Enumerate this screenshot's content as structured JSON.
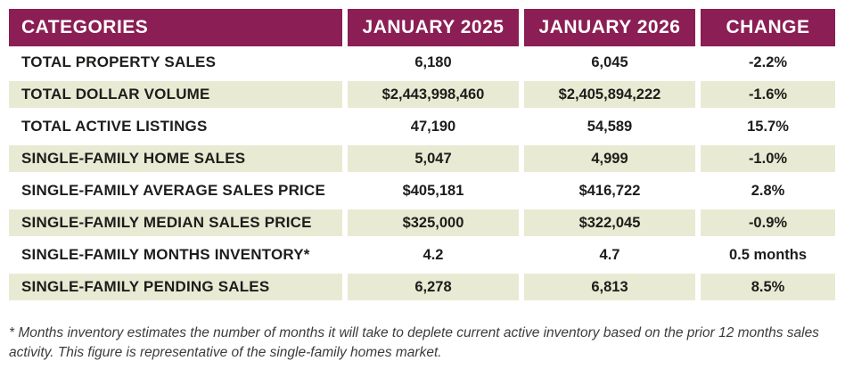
{
  "colors": {
    "header_bg": "#8B1E54",
    "row_alt_bg": "#E9EAD3",
    "text": "#1d1d1b"
  },
  "chart_data": {
    "type": "table",
    "columns": [
      "CATEGORIES",
      "JANUARY 2025",
      "JANUARY 2026",
      "CHANGE"
    ],
    "rows": [
      {
        "category": "TOTAL PROPERTY SALES",
        "jan_2025": "6,180",
        "jan_2026": "6,045",
        "change": "-2.2%"
      },
      {
        "category": "TOTAL DOLLAR VOLUME",
        "jan_2025": "$2,443,998,460",
        "jan_2026": "$2,405,894,222",
        "change": "-1.6%"
      },
      {
        "category": "TOTAL ACTIVE LISTINGS",
        "jan_2025": "47,190",
        "jan_2026": "54,589",
        "change": "15.7%"
      },
      {
        "category": "SINGLE-FAMILY HOME SALES",
        "jan_2025": "5,047",
        "jan_2026": "4,999",
        "change": "-1.0%"
      },
      {
        "category": "SINGLE-FAMILY AVERAGE SALES PRICE",
        "jan_2025": "$405,181",
        "jan_2026": "$416,722",
        "change": "2.8%"
      },
      {
        "category": "SINGLE-FAMILY MEDIAN SALES PRICE",
        "jan_2025": "$325,000",
        "jan_2026": "$322,045",
        "change": "-0.9%"
      },
      {
        "category": "SINGLE-FAMILY MONTHS INVENTORY*",
        "jan_2025": "4.2",
        "jan_2026": "4.7",
        "change": "0.5 months"
      },
      {
        "category": "SINGLE-FAMILY PENDING SALES",
        "jan_2025": "6,278",
        "jan_2026": "6,813",
        "change": "8.5%"
      }
    ]
  },
  "footnote": "* Months inventory estimates the number of months it will take to deplete current active inventory based on the prior 12 months sales activity. This figure is representative of the single-family homes market."
}
